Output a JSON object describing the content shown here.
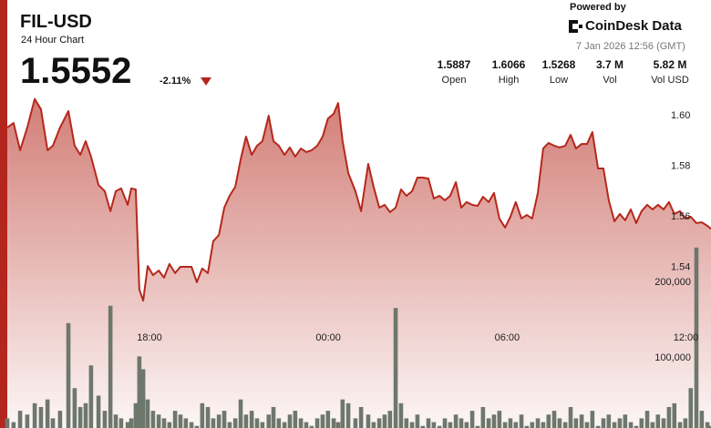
{
  "header": {
    "title": "FIL-USD",
    "subtitle": "24 Hour Chart",
    "price": "1.5552",
    "change": "-2.11%",
    "powered_by": "Powered by",
    "brand": "CoinDesk Data",
    "timestamp": "7 Jan 2026 12:56 (GMT)",
    "stats": [
      {
        "value": "1.5887",
        "label": "Open"
      },
      {
        "value": "1.6066",
        "label": "High"
      },
      {
        "value": "1.5268",
        "label": "Low"
      },
      {
        "value": "3.7 M",
        "label": "Vol"
      },
      {
        "value": "5.82 M",
        "label": "Vol USD"
      }
    ]
  },
  "chart_data": {
    "type": "line",
    "x": [
      13.23,
      13.44,
      13.66,
      13.9,
      14.15,
      14.36,
      14.58,
      14.76,
      15.0,
      15.28,
      15.49,
      15.68,
      15.86,
      16.04,
      16.29,
      16.5,
      16.69,
      16.87,
      17.05,
      17.27,
      17.39,
      17.54,
      17.66,
      17.79,
      17.94,
      18.12,
      18.31,
      18.49,
      18.67,
      18.86,
      19.04,
      19.22,
      19.41,
      19.59,
      19.77,
      19.96,
      20.14,
      20.33,
      20.51,
      20.69,
      20.88,
      21.06,
      21.24,
      21.43,
      21.61,
      21.79,
      22.0,
      22.16,
      22.34,
      22.53,
      22.71,
      22.89,
      23.08,
      23.26,
      23.44,
      23.63,
      23.81,
      23.99,
      24.18,
      24.33,
      24.48,
      24.67,
      24.91,
      25.1,
      25.34,
      25.52,
      25.71,
      25.89,
      26.07,
      26.26,
      26.44,
      26.62,
      26.81,
      26.99,
      27.17,
      27.36,
      27.54,
      27.73,
      27.91,
      28.09,
      28.28,
      28.46,
      28.64,
      28.83,
      29.01,
      29.19,
      29.38,
      29.56,
      29.74,
      29.93,
      30.11,
      30.29,
      30.48,
      30.66,
      30.84,
      31.03,
      31.21,
      31.39,
      31.58,
      31.76,
      31.95,
      32.13,
      32.31,
      32.5,
      32.68,
      32.86,
      33.05,
      33.23,
      33.41,
      33.6,
      33.78,
      33.96,
      34.15,
      34.33,
      34.51,
      34.7,
      34.88,
      35.06,
      35.25,
      35.43,
      35.61,
      35.8,
      35.98,
      36.16,
      36.35,
      36.53,
      36.72,
      36.84
    ],
    "series": [
      {
        "color": "#b5281c",
        "values": [
          1.5953,
          1.5971,
          1.5863,
          1.5953,
          1.6066,
          1.6025,
          1.5863,
          1.5881,
          1.5953,
          1.6018,
          1.5881,
          1.5845,
          1.5899,
          1.5838,
          1.5726,
          1.5701,
          1.5622,
          1.5701,
          1.5712,
          1.5647,
          1.5712,
          1.5708,
          1.5312,
          1.5268,
          1.5405,
          1.5369,
          1.5387,
          1.5359,
          1.5413,
          1.5377,
          1.5402,
          1.5402,
          1.5402,
          1.5341,
          1.5395,
          1.5377,
          1.5503,
          1.5528,
          1.5636,
          1.5683,
          1.5719,
          1.5827,
          1.5917,
          1.5845,
          1.5881,
          1.5899,
          1.6,
          1.5899,
          1.5881,
          1.5845,
          1.5874,
          1.5838,
          1.587,
          1.5856,
          1.5863,
          1.5881,
          1.5917,
          1.5989,
          1.6007,
          1.605,
          1.5899,
          1.5773,
          1.5701,
          1.5622,
          1.5809,
          1.5719,
          1.5636,
          1.5647,
          1.5618,
          1.5636,
          1.5708,
          1.5683,
          1.5701,
          1.5755,
          1.5755,
          1.5751,
          1.5672,
          1.5683,
          1.5665,
          1.5683,
          1.5737,
          1.5636,
          1.5658,
          1.5647,
          1.5643,
          1.5679,
          1.5658,
          1.5694,
          1.5593,
          1.5557,
          1.56,
          1.5658,
          1.5593,
          1.5607,
          1.5593,
          1.5694,
          1.587,
          1.5892,
          1.5881,
          1.5874,
          1.5881,
          1.5924,
          1.587,
          1.5888,
          1.5888,
          1.5935,
          1.5791,
          1.5791,
          1.5665,
          1.5582,
          1.5611,
          1.5586,
          1.5629,
          1.5575,
          1.5622,
          1.5647,
          1.5629,
          1.5647,
          1.5629,
          1.5658,
          1.5611,
          1.5622,
          1.5593,
          1.56,
          1.5575,
          1.5578,
          1.5564,
          1.5552
        ]
      },
      {
        "type": "bar",
        "axis": "y2",
        "color": "#6e776c",
        "values": [
          20000,
          15000,
          30000,
          25000,
          40000,
          35000,
          45000,
          20000,
          30000,
          146000,
          60000,
          35000,
          40000,
          90000,
          50000,
          30000,
          169000,
          25000,
          20000,
          15000,
          20000,
          40000,
          102000,
          85000,
          45000,
          30000,
          25000,
          20000,
          15000,
          30000,
          25000,
          20000,
          15000,
          10000,
          40000,
          35000,
          20000,
          25000,
          30000,
          15000,
          20000,
          45000,
          25000,
          30000,
          20000,
          15000,
          25000,
          35000,
          20000,
          15000,
          25000,
          30000,
          20000,
          15000,
          10000,
          20000,
          25000,
          30000,
          20000,
          15000,
          45000,
          40000,
          20000,
          35000,
          25000,
          15000,
          20000,
          25000,
          30000,
          166000,
          40000,
          20000,
          15000,
          25000,
          10000,
          20000,
          15000,
          10000,
          20000,
          15000,
          25000,
          20000,
          15000,
          30000,
          10000,
          35000,
          20000,
          25000,
          30000,
          15000,
          20000,
          15000,
          25000,
          10000,
          15000,
          20000,
          15000,
          25000,
          30000,
          20000,
          15000,
          35000,
          20000,
          25000,
          15000,
          30000,
          10000,
          20000,
          25000,
          15000,
          20000,
          25000,
          15000,
          10000,
          20000,
          30000,
          15000,
          25000,
          20000,
          35000,
          40000,
          15000,
          20000,
          60000,
          246000,
          30000,
          15000,
          10000
        ]
      }
    ],
    "xlim": [
      13.23,
      36.84
    ],
    "xticks": [
      {
        "value": 18,
        "label": "18:00"
      },
      {
        "value": 24,
        "label": "00:00"
      },
      {
        "value": 30,
        "label": "06:00"
      },
      {
        "value": 36,
        "label": "12:00"
      }
    ],
    "ylim": [
      1.52,
      1.61
    ],
    "yticks": [
      1.54,
      1.56,
      1.58,
      {
        "value": 1.6,
        "label": "1.60"
      }
    ],
    "y2lim": [
      0,
      250000
    ],
    "y2ticks": [
      {
        "value": 100000,
        "label": "100,000"
      },
      {
        "value": 200000,
        "label": "200,000"
      }
    ],
    "grid": false
  }
}
